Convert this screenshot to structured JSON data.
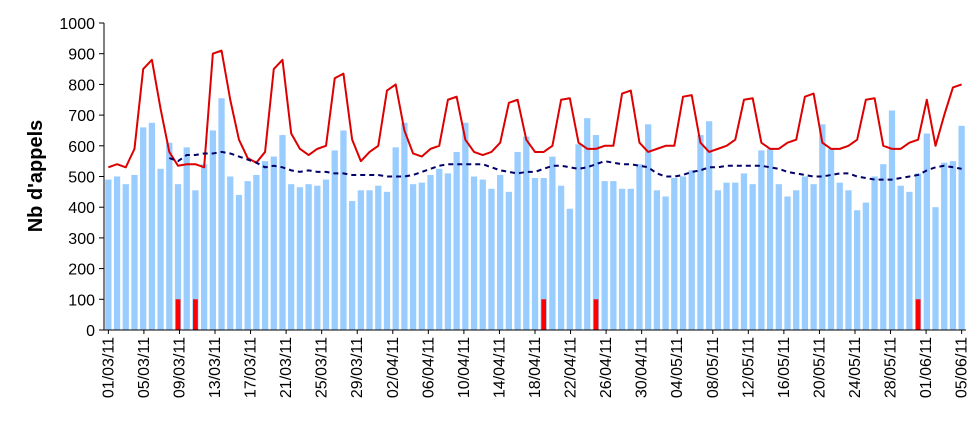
{
  "chart_data": {
    "type": "bar",
    "title": "",
    "xlabel": "",
    "ylabel": "Nb d'appels",
    "ylim": [
      0,
      1000
    ],
    "yticks": [
      0,
      100,
      200,
      300,
      400,
      500,
      600,
      700,
      800,
      900,
      1000
    ],
    "x_tick_labels": [
      "01/03/11",
      "05/03/11",
      "09/03/11",
      "13/03/11",
      "17/03/11",
      "21/03/11",
      "25/03/11",
      "29/03/11",
      "02/04/11",
      "06/04/11",
      "10/04/11",
      "14/04/11",
      "18/04/11",
      "22/04/11",
      "26/04/11",
      "30/04/11",
      "04/05/11",
      "08/05/11",
      "12/05/11",
      "16/05/11",
      "20/05/11",
      "24/05/11",
      "28/05/11",
      "01/06/11",
      "05/06/11"
    ],
    "grid": false,
    "legend": "none",
    "colors": {
      "bars": "#99ccff",
      "alert_bars": "#ff0000",
      "upper_line": "#dd0000",
      "mean_line": "#000066"
    },
    "series": [
      {
        "type": "bar",
        "values": [
          490,
          500,
          475,
          505,
          660,
          675,
          525,
          610,
          475,
          595,
          455,
          540,
          650,
          755,
          500,
          440,
          485,
          505,
          550,
          565,
          635,
          475,
          465,
          475,
          470,
          490,
          585,
          650,
          420,
          455,
          455,
          470,
          450,
          595,
          675,
          475,
          480,
          505,
          525,
          510,
          580,
          675,
          500,
          490,
          460,
          505,
          450,
          580,
          630,
          495,
          495,
          565,
          470,
          395,
          605,
          690,
          635,
          485,
          485,
          460,
          460,
          540,
          670,
          455,
          435,
          495,
          500,
          520,
          635,
          680,
          455,
          480,
          480,
          510,
          475,
          585,
          590,
          475,
          435,
          455,
          500,
          475,
          670,
          590,
          480,
          455,
          390,
          415,
          500,
          540,
          715,
          470,
          450,
          510,
          640,
          400,
          545,
          550,
          665
        ]
      },
      {
        "type": "bar",
        "values": [
          0,
          0,
          0,
          0,
          0,
          0,
          0,
          0,
          100,
          0,
          100,
          0,
          0,
          0,
          0,
          0,
          0,
          0,
          0,
          0,
          0,
          0,
          0,
          0,
          0,
          0,
          0,
          0,
          0,
          0,
          0,
          0,
          0,
          0,
          0,
          0,
          0,
          0,
          0,
          0,
          0,
          0,
          0,
          0,
          0,
          0,
          0,
          0,
          0,
          0,
          100,
          0,
          0,
          0,
          0,
          0,
          100,
          0,
          0,
          0,
          0,
          0,
          0,
          0,
          0,
          0,
          0,
          0,
          0,
          0,
          0,
          0,
          0,
          0,
          0,
          0,
          0,
          0,
          0,
          0,
          0,
          0,
          0,
          0,
          0,
          0,
          0,
          0,
          0,
          0,
          0,
          0,
          0,
          100,
          0,
          0,
          0,
          0,
          0
        ]
      },
      {
        "type": "line",
        "values": [
          530,
          540,
          530,
          590,
          850,
          880,
          720,
          580,
          535,
          540,
          540,
          530,
          900,
          910,
          750,
          620,
          560,
          545,
          580,
          850,
          880,
          640,
          590,
          570,
          590,
          600,
          820,
          835,
          620,
          550,
          580,
          600,
          780,
          800,
          650,
          575,
          565,
          590,
          600,
          750,
          760,
          620,
          580,
          570,
          580,
          610,
          740,
          750,
          620,
          580,
          580,
          600,
          750,
          755,
          610,
          590,
          590,
          600,
          600,
          770,
          780,
          610,
          580,
          590,
          600,
          600,
          760,
          765,
          610,
          580,
          590,
          600,
          620,
          750,
          755,
          610,
          590,
          590,
          610,
          620,
          760,
          770,
          610,
          590,
          590,
          600,
          620,
          750,
          755,
          600,
          590,
          590,
          610,
          620,
          750,
          600,
          700,
          790,
          800
        ]
      },
      {
        "type": "line",
        "values": [
          null,
          null,
          null,
          null,
          null,
          null,
          null,
          560,
          550,
          570,
          570,
          575,
          575,
          580,
          575,
          565,
          555,
          545,
          530,
          535,
          530,
          520,
          515,
          520,
          515,
          515,
          510,
          510,
          505,
          505,
          505,
          505,
          500,
          500,
          500,
          505,
          515,
          525,
          535,
          540,
          540,
          540,
          540,
          540,
          530,
          520,
          515,
          510,
          515,
          515,
          525,
          535,
          535,
          530,
          525,
          530,
          540,
          550,
          545,
          540,
          540,
          535,
          530,
          510,
          500,
          500,
          505,
          515,
          520,
          530,
          530,
          535,
          535,
          535,
          535,
          535,
          530,
          525,
          515,
          510,
          505,
          500,
          500,
          505,
          510,
          510,
          500,
          495,
          490,
          490,
          490,
          495,
          500,
          505,
          520,
          530,
          535,
          530,
          525
        ]
      }
    ]
  }
}
